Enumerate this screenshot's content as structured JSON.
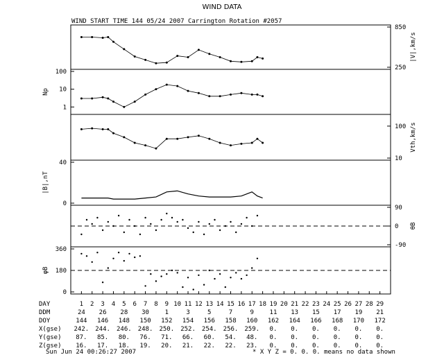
{
  "title": "WIND DATA",
  "subtitle": "WIND START TIME 144 05/24 2007 Carrington Rotation #2057",
  "footer_date": "Sun Jun 24 00:26:27 2007",
  "footer_note": "* X Y Z = 0. 0. 0. means no data shown",
  "chart_data": [
    {
      "type": "scatter",
      "panel": "speed",
      "ylabel_right": "|V|,km/s",
      "ylim": [
        250,
        850
      ],
      "tick_labels_right": [
        "850",
        "250"
      ],
      "x": [
        144,
        145,
        146,
        146.5,
        147,
        148,
        149,
        150,
        151,
        152,
        153,
        154,
        155,
        156,
        157,
        158,
        159,
        160,
        160.5,
        161
      ],
      "y": [
        700,
        700,
        690,
        700,
        630,
        520,
        410,
        360,
        310,
        320,
        420,
        400,
        510,
        450,
        400,
        340,
        330,
        340,
        400,
        380
      ]
    },
    {
      "type": "scatter",
      "panel": "density",
      "ylabel_left": "Np",
      "scale": "log",
      "ylim": [
        0.5,
        100
      ],
      "tick_labels_left": [
        "100",
        "10",
        "1"
      ],
      "x": [
        144,
        145,
        146,
        146.5,
        147,
        148,
        149,
        150,
        151,
        152,
        153,
        154,
        155,
        156,
        157,
        158,
        159,
        160,
        160.5,
        161
      ],
      "y": [
        3,
        3,
        3.5,
        3,
        2,
        1,
        2,
        5,
        10,
        18,
        15,
        8,
        6,
        4,
        4,
        5,
        6,
        5,
        5,
        4
      ]
    },
    {
      "type": "scatter",
      "panel": "thermal speed",
      "ylabel_right": "Vth,km/s",
      "scale": "log",
      "ylim": [
        10,
        200
      ],
      "tick_labels_right": [
        "100",
        "10"
      ],
      "x": [
        144,
        145,
        146,
        146.5,
        147,
        148,
        149,
        150,
        151,
        152,
        153,
        154,
        155,
        156,
        157,
        158,
        159,
        160,
        160.5,
        161
      ],
      "y": [
        80,
        85,
        80,
        80,
        60,
        45,
        30,
        25,
        20,
        40,
        40,
        45,
        50,
        40,
        30,
        25,
        28,
        30,
        40,
        30
      ]
    },
    {
      "type": "line",
      "panel": "magnetic field",
      "ylabel_left": "|B|,nT",
      "ylim": [
        0,
        40
      ],
      "tick_labels_left": [
        "40",
        "0"
      ],
      "x": [
        144,
        145,
        146,
        146.5,
        147,
        148,
        149,
        150,
        151,
        152,
        153,
        154,
        155,
        156,
        157,
        158,
        159,
        160,
        160.5,
        161
      ],
      "y": [
        5,
        5,
        5,
        5,
        4,
        4,
        4,
        5,
        6,
        11,
        12,
        9,
        7,
        6,
        6,
        6,
        7,
        11,
        7,
        5
      ]
    },
    {
      "type": "scatter",
      "panel": "theta_B",
      "ylabel_right": "θB",
      "ylim": [
        -90,
        90
      ],
      "tick_labels_right": [
        "90",
        "0",
        "-90"
      ],
      "x": [
        144,
        144.5,
        145,
        145.5,
        146,
        146.5,
        147,
        147.5,
        148,
        148.5,
        149,
        149.5,
        150,
        150.5,
        151,
        151.5,
        152,
        152.5,
        153,
        153.5,
        154,
        154.5,
        155,
        155.5,
        156,
        156.5,
        157,
        157.5,
        158,
        158.5,
        159,
        159.5,
        160,
        160.5
      ],
      "y": [
        -40,
        30,
        10,
        40,
        -20,
        20,
        0,
        50,
        -30,
        30,
        0,
        -40,
        40,
        10,
        -20,
        30,
        60,
        40,
        20,
        30,
        -10,
        -30,
        20,
        -40,
        10,
        30,
        -20,
        0,
        20,
        -30,
        10,
        40,
        0,
        50
      ]
    },
    {
      "type": "scatter",
      "panel": "phi_B",
      "ylabel_left": "φB",
      "ylim": [
        0,
        360
      ],
      "tick_labels_left": [
        "360",
        "180",
        "0"
      ],
      "x": [
        144,
        144.5,
        145,
        145.5,
        146,
        146.5,
        147,
        147.5,
        148,
        148.5,
        149,
        149.5,
        150,
        150.5,
        151,
        151.5,
        152,
        152.5,
        153,
        153.5,
        154,
        154.5,
        155,
        155.5,
        156,
        156.5,
        157,
        157.5,
        158,
        158.5,
        159,
        159.5,
        160,
        160.5
      ],
      "y": [
        320,
        300,
        250,
        330,
        80,
        200,
        280,
        330,
        260,
        320,
        290,
        300,
        50,
        150,
        90,
        130,
        150,
        180,
        160,
        40,
        120,
        20,
        140,
        60,
        180,
        110,
        150,
        40,
        120,
        160,
        110,
        140,
        200,
        280
      ]
    }
  ],
  "table": {
    "row_labels": [
      "DAY",
      "DDM",
      "DOY",
      "X(gse)",
      "Y(gse)",
      "Z(gse)"
    ],
    "DAY": [
      "1",
      "2",
      "3",
      "4",
      "5",
      "6",
      "7",
      "8",
      "9",
      "10",
      "11",
      "12",
      "13",
      "14",
      "15",
      "16",
      "17",
      "18",
      "19",
      "20",
      "21",
      "22",
      "23",
      "24",
      "25",
      "26",
      "27",
      "28",
      "29"
    ],
    "DDM": [
      "24",
      "26",
      "28",
      "30",
      "1",
      "3",
      "5",
      "7",
      "9",
      "11",
      "13",
      "15",
      "17",
      "19",
      "21"
    ],
    "DOY": [
      "144",
      "146",
      "148",
      "150",
      "152",
      "154",
      "156",
      "158",
      "160",
      "162",
      "164",
      "166",
      "168",
      "170",
      "172"
    ],
    "X(gse)": [
      "242.",
      "244.",
      "246.",
      "248.",
      "250.",
      "252.",
      "254.",
      "256.",
      "259.",
      "0.",
      "0.",
      "0.",
      "0.",
      "0.",
      "0."
    ],
    "Y(gse)": [
      "87.",
      "85.",
      "80.",
      "76.",
      "71.",
      "66.",
      "60.",
      "54.",
      "48.",
      "0.",
      "0.",
      "0.",
      "0.",
      "0.",
      "0."
    ],
    "Z(gse)": [
      "16.",
      "17.",
      "18.",
      "19.",
      "20.",
      "21.",
      "22.",
      "22.",
      "23.",
      "0.",
      "0.",
      "0.",
      "0.",
      "0.",
      "0."
    ]
  }
}
